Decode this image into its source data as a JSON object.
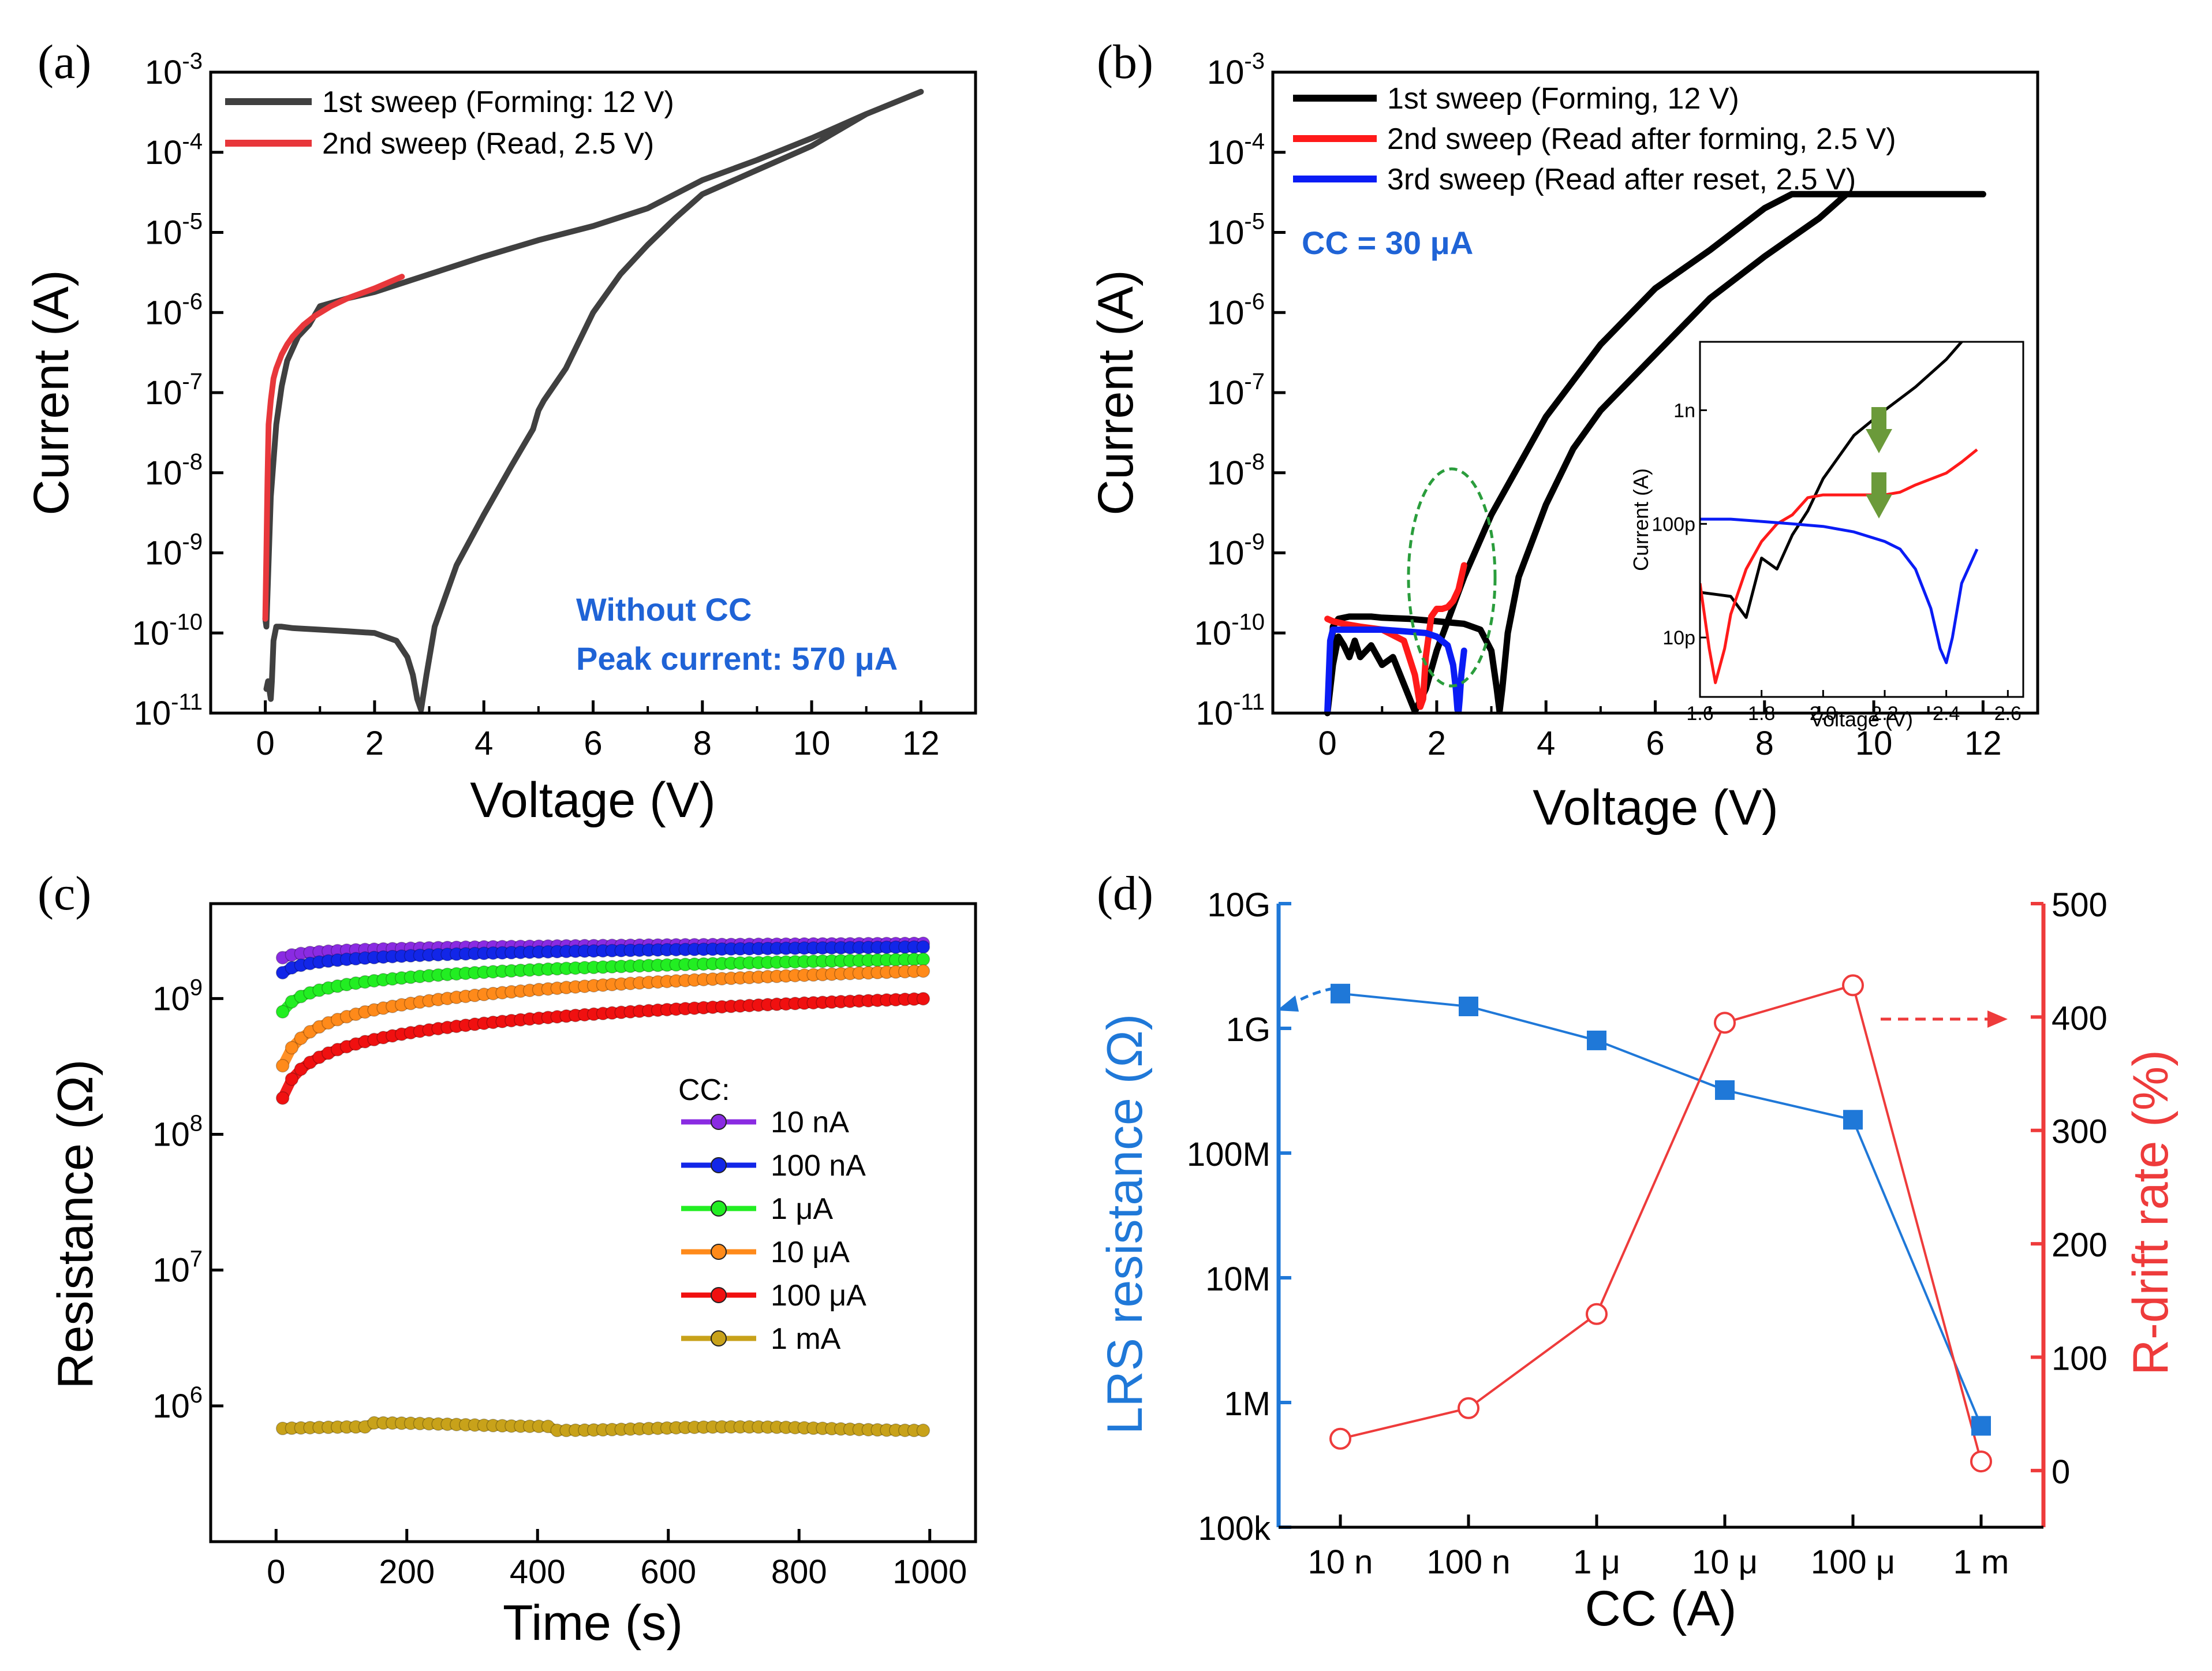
{
  "panels": {
    "a": {
      "label": "(a)"
    },
    "b": {
      "label": "(b)"
    },
    "c": {
      "label": "(c)"
    },
    "d": {
      "label": "(d)"
    }
  },
  "colors": {
    "gray": "#404040",
    "red": "#e8373b",
    "black": "#000000",
    "blue": "#0a1cf5",
    "inset_red": "#ff1a1a",
    "note_blue": "#1f63d6",
    "green_dash": "#2a9d3c",
    "arrow_green": "#6b9a3a",
    "cc_10n": "#8a2be2",
    "cc_100n": "#1226e8",
    "cc_1u": "#22ee22",
    "cc_10u": "#ff8a1a",
    "cc_100u": "#f01010",
    "cc_1m": "#c8a21a",
    "lrs_blue": "#1f78d8",
    "drift_red": "#ee3b3b"
  },
  "chart_data": [
    {
      "id": "a",
      "type": "line",
      "xlabel": "Voltage (V)",
      "ylabel": "Current (A)",
      "xlim": [
        -1,
        13
      ],
      "ylim": [
        1e-11,
        0.001
      ],
      "yscale": "log",
      "xticks": [
        "0",
        "2",
        "4",
        "6",
        "8",
        "10",
        "12"
      ],
      "xtick_values": [
        0,
        2,
        4,
        6,
        8,
        10,
        12
      ],
      "yticks": [
        {
          "base": "10",
          "exp": "-3"
        },
        {
          "base": "10",
          "exp": "-4"
        },
        {
          "base": "10",
          "exp": "-5"
        },
        {
          "base": "10",
          "exp": "-6"
        },
        {
          "base": "10",
          "exp": "-7"
        },
        {
          "base": "10",
          "exp": "-8"
        },
        {
          "base": "10",
          "exp": "-9"
        },
        {
          "base": "10",
          "exp": "-10"
        },
        {
          "base": "10",
          "exp": "-11"
        }
      ],
      "annotations": [
        "Without CC",
        "Peak current: 570 μA"
      ],
      "series": [
        {
          "name": "1st sweep (Forming: 12 V)",
          "color": "#404040",
          "x": [
            0.02,
            0.05,
            0.1,
            0.12,
            0.15,
            0.2,
            0.3,
            0.5,
            1.0,
            1.5,
            2.0,
            2.4,
            2.6,
            2.7,
            2.78,
            2.85,
            2.95,
            3.1,
            3.5,
            4.0,
            4.5,
            4.9,
            5.0,
            5.1,
            5.5,
            6.0,
            6.5,
            7.0,
            7.5,
            8.0,
            9.0,
            10.0,
            11.0,
            12.0,
            11.0,
            10.0,
            9.0,
            8.0,
            7.5,
            7.0,
            6.0,
            5.0,
            4.0,
            3.0,
            2.0,
            1.5,
            1.0,
            0.8,
            0.6,
            0.4,
            0.3,
            0.2,
            0.1,
            0.05,
            0.02,
            0.0
          ],
          "y": [
            2e-11,
            2.5e-11,
            1.5e-11,
            2.5e-11,
            8e-11,
            1.2e-10,
            1.2e-10,
            1.15e-10,
            1.1e-10,
            1.05e-10,
            1e-10,
            8e-11,
            5e-11,
            3e-11,
            1.5e-11,
            1.1e-11,
            3e-11,
            1.2e-10,
            7e-10,
            3e-09,
            1.2e-08,
            3.5e-08,
            6e-08,
            8e-08,
            2e-07,
            1e-06,
            3e-06,
            7e-06,
            1.5e-05,
            3e-05,
            6e-05,
            0.00012,
            0.0003,
            0.00057,
            0.0003,
            0.00015,
            8e-05,
            4.5e-05,
            3e-05,
            2e-05,
            1.2e-05,
            8e-06,
            5e-06,
            3e-06,
            1.8e-06,
            1.5e-06,
            1.2e-06,
            7e-07,
            5e-07,
            2.5e-07,
            1.2e-07,
            4e-08,
            5e-09,
            5e-10,
            1.2e-10,
            1.5e-10
          ]
        },
        {
          "name": "2nd sweep (Read, 2.5 V)",
          "color": "#e8373b",
          "x": [
            0.0,
            0.02,
            0.04,
            0.06,
            0.1,
            0.15,
            0.2,
            0.3,
            0.4,
            0.5,
            0.7,
            0.9,
            1.2,
            1.5,
            2.0,
            2.5
          ],
          "y": [
            1.5e-10,
            1e-09,
            8e-09,
            4e-08,
            8e-08,
            1.5e-07,
            2e-07,
            3e-07,
            4e-07,
            5e-07,
            7e-07,
            9e-07,
            1.2e-06,
            1.5e-06,
            2e-06,
            2.8e-06
          ]
        }
      ]
    },
    {
      "id": "b",
      "type": "line",
      "xlabel": "Voltage (V)",
      "ylabel": "Current (A)",
      "xlim": [
        -1,
        13
      ],
      "ylim": [
        1e-11,
        0.001
      ],
      "yscale": "log",
      "xticks": [
        "0",
        "2",
        "4",
        "6",
        "8",
        "10",
        "12"
      ],
      "xtick_values": [
        0,
        2,
        4,
        6,
        8,
        10,
        12
      ],
      "yticks": [
        {
          "base": "10",
          "exp": "-3"
        },
        {
          "base": "10",
          "exp": "-4"
        },
        {
          "base": "10",
          "exp": "-5"
        },
        {
          "base": "10",
          "exp": "-6"
        },
        {
          "base": "10",
          "exp": "-7"
        },
        {
          "base": "10",
          "exp": "-8"
        },
        {
          "base": "10",
          "exp": "-9"
        },
        {
          "base": "10",
          "exp": "-10"
        },
        {
          "base": "10",
          "exp": "-11"
        }
      ],
      "annotations": [
        "CC = 30 μA"
      ],
      "series": [
        {
          "name": "1st sweep (Forming, 12 V)",
          "color": "#000000",
          "x": [
            0.0,
            0.1,
            0.2,
            0.4,
            0.6,
            0.8,
            1.0,
            1.5,
            2.0,
            2.5,
            2.8,
            3.0,
            3.1,
            3.15,
            3.2,
            3.3,
            3.5,
            4.0,
            4.5,
            5.0,
            6.0,
            7.0,
            8.0,
            9.0,
            9.5,
            10,
            11,
            12,
            11,
            10,
            9.5,
            9.0,
            8.5,
            8.0,
            7.0,
            6.0,
            5.0,
            4.0,
            3.0,
            2.5,
            2.0,
            1.8,
            1.6,
            1.2,
            1.0,
            0.8,
            0.6,
            0.5,
            0.4,
            0.3,
            0.2,
            0.1,
            0.0
          ],
          "y": [
            1e-11,
            1.2e-10,
            1.5e-10,
            1.6e-10,
            1.6e-10,
            1.6e-10,
            1.55e-10,
            1.5e-10,
            1.4e-10,
            1.3e-10,
            1.1e-10,
            6e-11,
            2e-11,
            1.05e-11,
            2e-11,
            1e-10,
            5e-10,
            4e-09,
            2e-08,
            6e-08,
            3e-07,
            1.5e-06,
            5e-06,
            1.5e-05,
            3e-05,
            3e-05,
            3e-05,
            3e-05,
            3e-05,
            3e-05,
            3e-05,
            3e-05,
            3e-05,
            2e-05,
            6e-06,
            2e-06,
            4e-07,
            5e-08,
            3e-09,
            5e-10,
            6e-11,
            2e-11,
            1.05e-11,
            5e-11,
            4e-11,
            7e-11,
            5e-11,
            8e-11,
            5e-11,
            7e-11,
            9e-11,
            4e-11,
            1e-11
          ]
        },
        {
          "name": "2nd sweep (Read after forming, 2.5 V)",
          "color": "#ff1a1a",
          "x": [
            0.0,
            0.1,
            0.3,
            0.6,
            1.0,
            1.4,
            1.6,
            1.7,
            1.75,
            1.8,
            1.9,
            2.0,
            2.1,
            2.2,
            2.3,
            2.4,
            2.5
          ],
          "y": [
            1.5e-10,
            1.4e-10,
            1.3e-10,
            1.2e-10,
            1.1e-10,
            8e-11,
            3e-11,
            1.2e-11,
            1.5e-11,
            5e-11,
            1.6e-10,
            2e-10,
            2e-10,
            2.1e-10,
            2.5e-10,
            3.5e-10,
            7e-10
          ]
        },
        {
          "name": "3rd sweep (Read after reset, 2.5 V)",
          "color": "#0a1cf5",
          "x": [
            0.0,
            0.05,
            0.1,
            0.3,
            0.6,
            1.0,
            1.4,
            1.8,
            2.0,
            2.2,
            2.3,
            2.35,
            2.38,
            2.4,
            2.42,
            2.45,
            2.5
          ],
          "y": [
            1.05e-11,
            8e-11,
            1.1e-10,
            1.1e-10,
            1.1e-10,
            1.1e-10,
            1.05e-10,
            1e-10,
            9e-11,
            7e-11,
            4e-11,
            2e-11,
            1.1e-11,
            1.05e-11,
            1.5e-11,
            3e-11,
            6e-11
          ]
        }
      ],
      "inset": {
        "xlabel": "Voltage (V)",
        "ylabel": "Current (A)",
        "xlim": [
          1.6,
          2.65
        ],
        "ylim": [
          3e-12,
          4e-09
        ],
        "yscale": "log",
        "xticks": [
          "1.6",
          "1.8",
          "2.0",
          "2.2",
          "2.4",
          "2.6"
        ],
        "xtick_values": [
          1.6,
          1.8,
          2.0,
          2.2,
          2.4,
          2.6
        ],
        "yticks": [
          "1n",
          "100p",
          "10p"
        ],
        "ytick_values": [
          1e-09,
          1e-10,
          1e-11
        ],
        "series": [
          {
            "color": "#000000",
            "x": [
              1.6,
              1.65,
              1.7,
              1.75,
              1.8,
              1.85,
              1.9,
              1.95,
              2.0,
              2.1,
              2.2,
              2.3,
              2.4,
              2.45,
              2.5
            ],
            "y": [
              2.5e-11,
              2.4e-11,
              2.3e-11,
              1.5e-11,
              5e-11,
              4e-11,
              8e-11,
              1.3e-10,
              2.5e-10,
              6e-10,
              1e-09,
              1.6e-09,
              2.8e-09,
              4e-09,
              5e-09
            ]
          },
          {
            "color": "#ff1a1a",
            "x": [
              1.6,
              1.63,
              1.65,
              1.68,
              1.7,
              1.75,
              1.8,
              1.85,
              1.9,
              1.95,
              2.0,
              2.1,
              2.2,
              2.25,
              2.3,
              2.4,
              2.45,
              2.5
            ],
            "y": [
              3e-11,
              8e-12,
              4e-12,
              8e-12,
              1.6e-11,
              4e-11,
              7e-11,
              1e-10,
              1.2e-10,
              1.7e-10,
              1.8e-10,
              1.8e-10,
              1.8e-10,
              1.9e-10,
              2.2e-10,
              2.8e-10,
              3.5e-10,
              4.5e-10
            ]
          },
          {
            "color": "#0a1cf5",
            "x": [
              1.6,
              1.7,
              1.8,
              1.9,
              2.0,
              2.1,
              2.2,
              2.25,
              2.3,
              2.35,
              2.38,
              2.4,
              2.42,
              2.45,
              2.5
            ],
            "y": [
              1.1e-10,
              1.1e-10,
              1.05e-10,
              1e-10,
              9.5e-11,
              8.5e-11,
              7e-11,
              6e-11,
              4e-11,
              1.8e-11,
              8e-12,
              6e-12,
              1e-11,
              3e-11,
              6e-11
            ]
          }
        ]
      }
    },
    {
      "id": "c",
      "type": "scatter",
      "xlabel": "Time (s)",
      "ylabel": "Resistance (Ω)",
      "xlim": [
        -100,
        1070
      ],
      "ylim": [
        100000.0,
        5000000000.0
      ],
      "yscale": "log",
      "xticks": [
        "0",
        "200",
        "400",
        "600",
        "800",
        "1000"
      ],
      "xtick_values": [
        0,
        200,
        400,
        600,
        800,
        1000
      ],
      "yticks": [
        {
          "base": "10",
          "exp": "9"
        },
        {
          "base": "10",
          "exp": "8"
        },
        {
          "base": "10",
          "exp": "7"
        },
        {
          "base": "10",
          "exp": "6"
        }
      ],
      "legend_title": "CC:",
      "series": [
        {
          "name": "10 nA",
          "color": "#8a2be2",
          "R0": 2000000000.0,
          "Rend": 2550000000.0
        },
        {
          "name": "100 nA",
          "color": "#1226e8",
          "R0": 1550000000.0,
          "Rend": 2400000000.0
        },
        {
          "name": "1 μA",
          "color": "#22ee22",
          "R0": 800000000.0,
          "Rend": 1950000000.0
        },
        {
          "name": "10 μA",
          "color": "#ff8a1a",
          "R0": 320000000.0,
          "Rend": 1600000000.0
        },
        {
          "name": "100 μA",
          "color": "#f01010",
          "R0": 185000000.0,
          "Rend": 1000000000.0
        },
        {
          "name": "1 mA",
          "color": "#c8a21a",
          "R0": 680000.0,
          "Rend": 700000.0
        }
      ]
    },
    {
      "id": "d",
      "type": "line",
      "xlabel": "CC (A)",
      "ylabel": "LRS resistance (Ω)",
      "ylabel_right": "R-drift rate (%)",
      "categories": [
        "10 n",
        "100 n",
        "1 μ",
        "10 μ",
        "100 μ",
        "1 m"
      ],
      "ylim_left": [
        100000.0,
        10000000000.0
      ],
      "yscale_left": "log",
      "yticks_left": [
        "10G",
        "1G",
        "100M",
        "10M",
        "1M",
        "100k"
      ],
      "ytick_values_left": [
        10000000000.0,
        1000000000.0,
        100000000.0,
        10000000.0,
        1000000.0,
        100000.0
      ],
      "ylim_right": [
        -50,
        500
      ],
      "yticks_right": [
        "500",
        "400",
        "300",
        "200",
        "100",
        "0"
      ],
      "ytick_values_right": [
        500,
        400,
        300,
        200,
        100,
        0
      ],
      "series": [
        {
          "name": "LRS resistance",
          "axis": "left",
          "color": "#1f78d8",
          "marker": "square",
          "values": [
            1900000000.0,
            1500000000.0,
            800000000.0,
            320000000.0,
            185000000.0,
            650000.0
          ]
        },
        {
          "name": "R-drift rate",
          "axis": "right",
          "color": "#ee3b3b",
          "marker": "circle",
          "values": [
            28,
            55,
            138,
            395,
            428,
            8
          ]
        }
      ]
    }
  ]
}
